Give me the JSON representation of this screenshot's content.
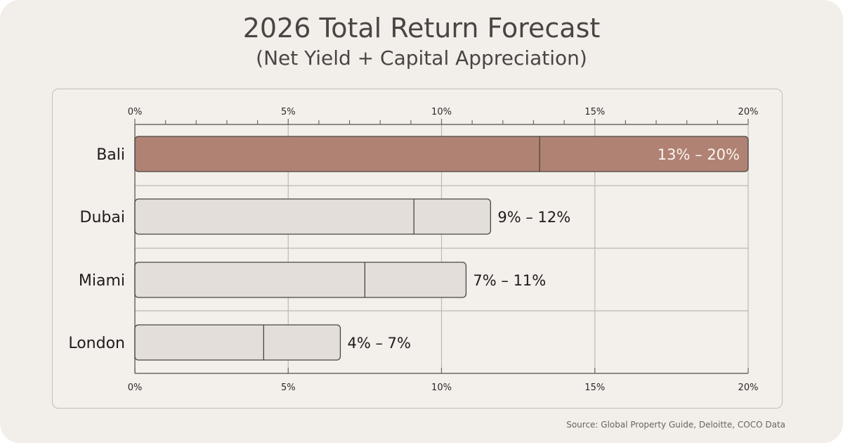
{
  "title": "2026 Total Return Forecast",
  "subtitle": "(Net Yield + Capital Appreciation)",
  "source": "Source: Global Property Guide, Deloitte, COCO Data",
  "colors": {
    "highlight": "#b08273",
    "default": "#e4dedb",
    "stroke": "#4a4542",
    "grid": "#bfb8b2",
    "background": "#f2eeea"
  },
  "chart_data": {
    "type": "bar",
    "orientation": "horizontal",
    "categories": [
      "Bali",
      "Dubai",
      "Miami",
      "London"
    ],
    "series": [
      {
        "values": [
          13.2,
          9.1,
          7.5,
          4.2
        ]
      },
      {
        "values": [
          6.8,
          2.5,
          3.3,
          2.5
        ]
      }
    ],
    "totals": [
      20,
      11.6,
      10.8,
      6.7
    ],
    "data_labels": [
      "13% – 20%",
      "9% – 12%",
      "7% – 11%",
      "4% – 7%"
    ],
    "highlighted": "Bali",
    "xlim": [
      0,
      20
    ],
    "xticks": [
      0,
      5,
      10,
      15,
      20
    ],
    "xtick_labels": [
      "0%",
      "5%",
      "10%",
      "15%",
      "20%"
    ],
    "minor_tick_step": 1,
    "grid": true,
    "title": "2026 Total Return Forecast",
    "subtitle": "(Net Yield + Capital Appreciation)"
  }
}
